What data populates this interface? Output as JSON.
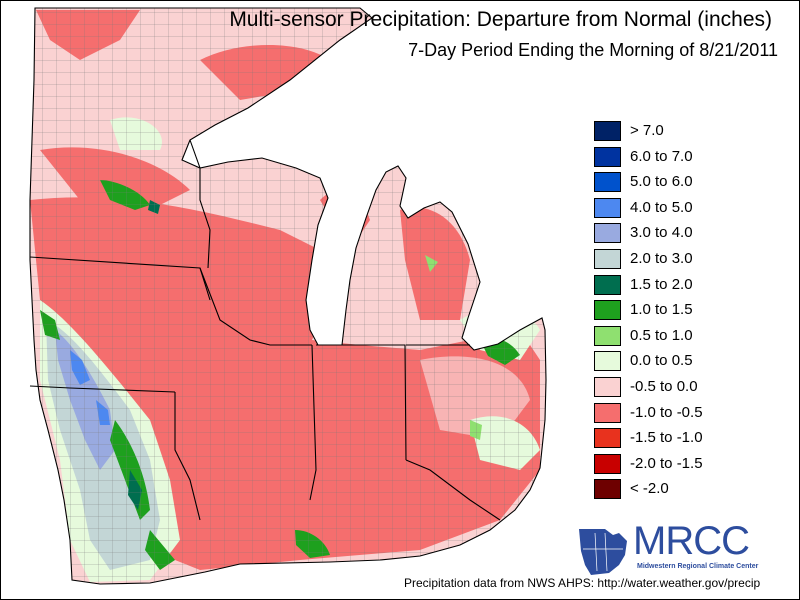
{
  "title": "Multi-sensor Precipitation: Departure from Normal (inches)",
  "subtitle": "7-Day Period Ending the Morning of 8/21/2011",
  "legend": [
    {
      "label": "> 7.0",
      "color": "#002266"
    },
    {
      "label": "6.0 to 7.0",
      "color": "#0033a0"
    },
    {
      "label": "5.0 to 6.0",
      "color": "#0052cc"
    },
    {
      "label": "4.0 to 5.0",
      "color": "#4d88f0"
    },
    {
      "label": "3.0 to 4.0",
      "color": "#99aae0"
    },
    {
      "label": "2.0 to 3.0",
      "color": "#c3d6d6"
    },
    {
      "label": "1.5 to 2.0",
      "color": "#006e4f"
    },
    {
      "label": "1.0 to 1.5",
      "color": "#1ea01e"
    },
    {
      "label": "0.5 to 1.0",
      "color": "#8fe070"
    },
    {
      "label": "0.0 to 0.5",
      "color": "#e6fadc"
    },
    {
      "label": "-0.5 to 0.0",
      "color": "#fad2d2"
    },
    {
      "label": "-1.0 to -0.5",
      "color": "#f56e6e"
    },
    {
      "label": "-1.5 to -1.0",
      "color": "#e8321e"
    },
    {
      "label": "-2.0 to -1.5",
      "color": "#c80000"
    },
    {
      "label": "< -2.0",
      "color": "#6e0000"
    }
  ],
  "logo": {
    "name": "MRCC",
    "subtitle": "Midwestern Regional Climate Center"
  },
  "footer": "Precipitation data from NWS AHPS:  http://water.weather.gov/precip",
  "colors": {
    "water": "#ffffff",
    "border": "#000000",
    "county_line": "#7a7a7a",
    "logo": "#2d4d9e"
  }
}
